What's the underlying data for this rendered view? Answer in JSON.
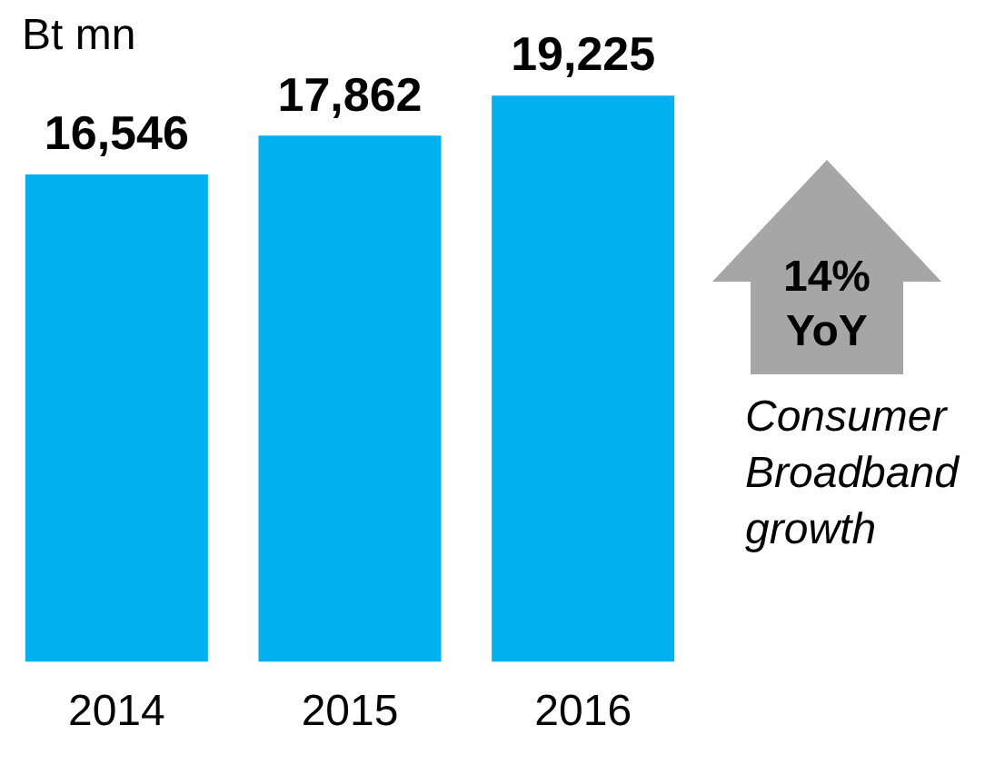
{
  "chart_data": {
    "type": "bar",
    "ylabel": "Bt mn",
    "categories": [
      "2014",
      "2015",
      "2016"
    ],
    "values": [
      16546,
      17862,
      19225
    ],
    "value_labels": [
      "16,546",
      "17,862",
      "19,225"
    ],
    "color": "#00b0f0",
    "tick_labels": "x",
    "grid": false,
    "legend": false,
    "annotations": [
      "14% YoY",
      "Consumer Broadband growth"
    ]
  }
}
